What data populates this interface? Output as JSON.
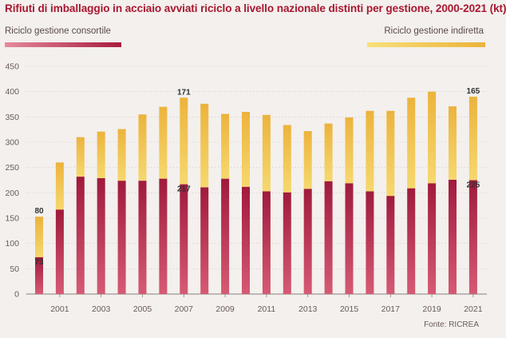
{
  "chart_data": {
    "type": "bar",
    "stacked": true,
    "title": "Rifiuti di imballaggio in acciaio avviati riciclo a livello nazionale distinti per gestione, 2000-2021 (kt)",
    "source": "Fonte: RICREA",
    "categories": [
      "2000",
      "2001",
      "2002",
      "2003",
      "2004",
      "2005",
      "2006",
      "2007",
      "2008",
      "2009",
      "2010",
      "2011",
      "2012",
      "2013",
      "2014",
      "2015",
      "2016",
      "2017",
      "2018",
      "2019",
      "2020",
      "2021"
    ],
    "x_tick_labels": [
      "2001",
      "2003",
      "2005",
      "2007",
      "2009",
      "2011",
      "2013",
      "2015",
      "2017",
      "2019",
      "2021"
    ],
    "series": [
      {
        "name": "Riciclo gestione consortile",
        "values": [
          73,
          167,
          232,
          229,
          224,
          224,
          228,
          217,
          211,
          228,
          212,
          203,
          201,
          208,
          223,
          219,
          203,
          194,
          209,
          219,
          226,
          225
        ]
      },
      {
        "name": "Riciclo gestione indiretta",
        "values": [
          80,
          93,
          78,
          92,
          102,
          131,
          142,
          171,
          165,
          128,
          148,
          151,
          133,
          114,
          114,
          130,
          159,
          168,
          179,
          181,
          145,
          165
        ]
      }
    ],
    "data_labels": [
      {
        "category": "2000",
        "series": "Riciclo gestione consortile",
        "value": "73"
      },
      {
        "category": "2000",
        "series": "Riciclo gestione indiretta",
        "value": "80"
      },
      {
        "category": "2007",
        "series": "Riciclo gestione consortile",
        "value": "217"
      },
      {
        "category": "2007",
        "series": "Riciclo gestione indiretta",
        "value": "171"
      },
      {
        "category": "2021",
        "series": "Riciclo gestione consortile",
        "value": "225"
      },
      {
        "category": "2021",
        "series": "Riciclo gestione indiretta",
        "value": "165"
      }
    ],
    "ylim": [
      0,
      450
    ],
    "yticks": [
      0,
      50,
      100,
      150,
      200,
      250,
      300,
      350,
      400,
      450
    ],
    "xlabel": "",
    "ylabel": "",
    "grid": true,
    "colors": {
      "consortile": "#b8284a",
      "indiretta": "#f0c04a",
      "title": "#a8182f"
    }
  }
}
